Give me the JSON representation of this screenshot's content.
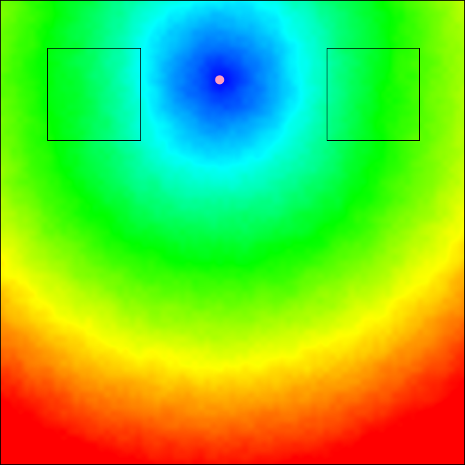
{
  "scene": {
    "colormap": "jet",
    "colormap_stops": [
      "#0000ff",
      "#00ffff",
      "#00ff00",
      "#ffff00",
      "#ff0000"
    ],
    "background_minimum_color": "#0000ff",
    "background_maximum_color": "#ff0000",
    "marker_color": "#ff9ec0",
    "obstacle_outline_color": "#000000",
    "source_marker": {
      "name": "source-point"
    },
    "obstacles": [
      {
        "name": "obstacle-left",
        "shape": "square-outline"
      },
      {
        "name": "obstacle-right",
        "shape": "square-outline"
      }
    ]
  }
}
